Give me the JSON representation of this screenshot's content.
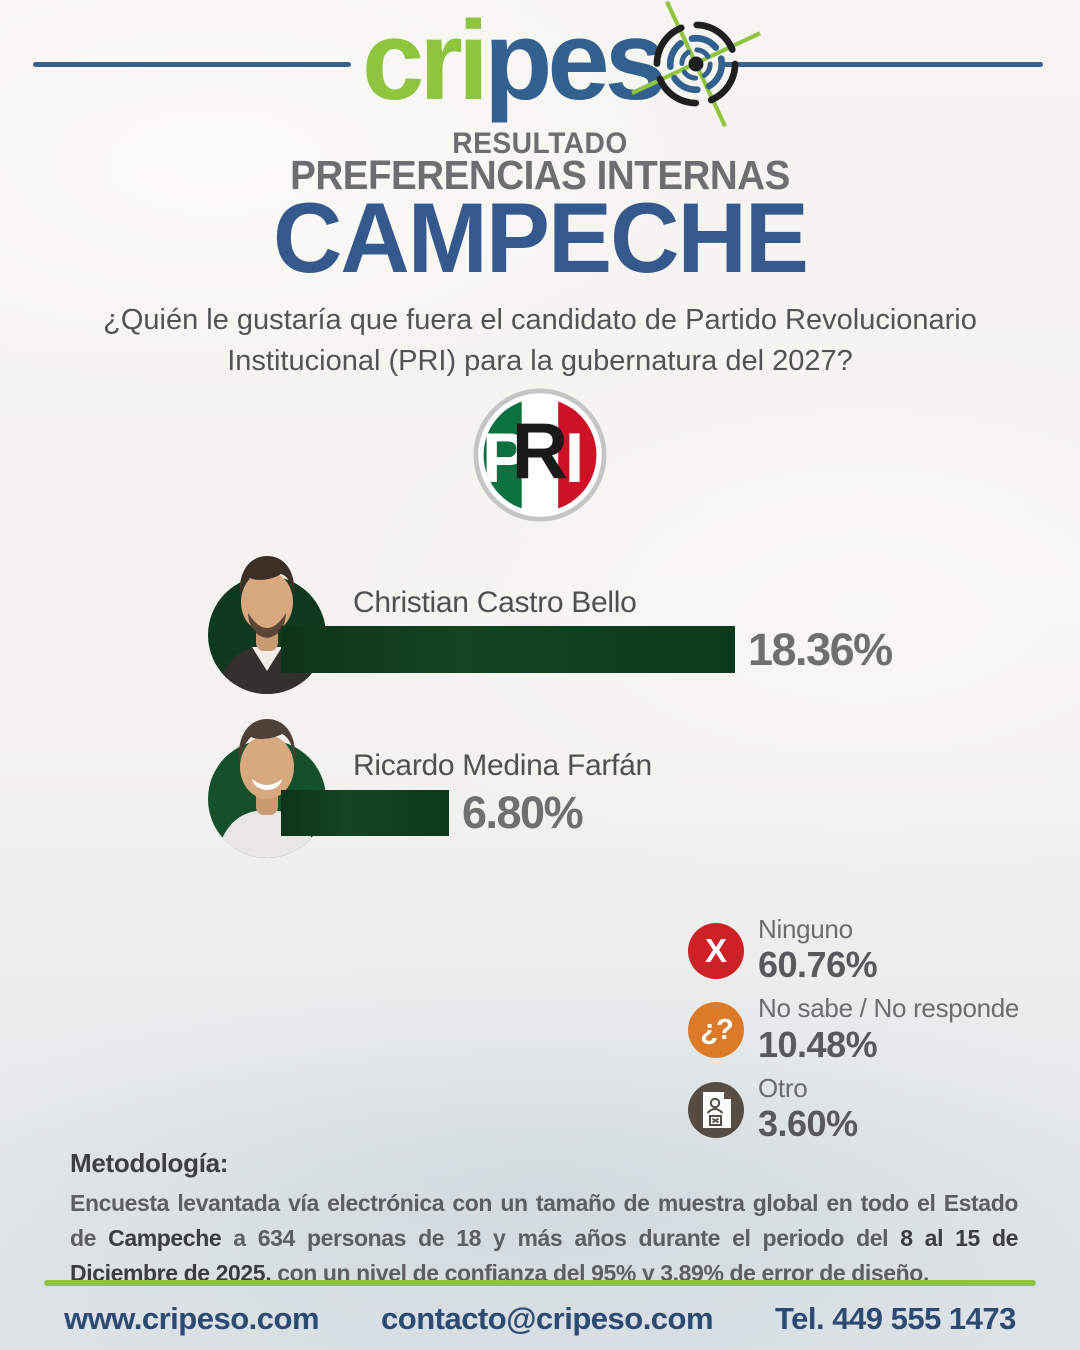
{
  "logo": {
    "green": "cri",
    "blue": "pes",
    "icon": "target-crosshair"
  },
  "header": {
    "kicker": "RESULTADO",
    "subtitle": "PREFERENCIAS INTERNAS",
    "title": "CAMPECHE"
  },
  "question": {
    "line1": "¿Quién le gustaría que fuera el candidato de Partido Revolucionario",
    "line2": "Institucional (PRI) para la gubernatura del 2027?"
  },
  "party": {
    "name": "PRI",
    "p": "P",
    "r": "R",
    "i": "I"
  },
  "chart_data": {
    "type": "bar",
    "orientation": "horizontal",
    "title": "RESULTADO PREFERENCIAS INTERNAS CAMPECHE",
    "question": "¿Quién le gustaría que fuera el candidato de Partido Revolucionario Institucional (PRI) para la gubernatura del 2027?",
    "unit": "%",
    "categories": [
      "Christian Castro Bello",
      "Ricardo Medina Farfán",
      "Ninguno",
      "No sabe / No responde",
      "Otro"
    ],
    "values": [
      18.36,
      6.8,
      60.76,
      10.48,
      3.6
    ],
    "value_labels": [
      "18.36%",
      "6.80%",
      "60.76%",
      "10.48%",
      "3.60%"
    ],
    "bar_color": "#0e3e20"
  },
  "others_icons": [
    {
      "name": "x-icon",
      "glyph": "X",
      "color": "#ce2127"
    },
    {
      "name": "question-icon",
      "glyph": "¿?",
      "color": "#dd7a2a"
    },
    {
      "name": "ballot-icon",
      "glyph": "",
      "color": "#564c44"
    }
  ],
  "methodology": {
    "heading": "Metodología:",
    "segments": [
      {
        "text": "Encuesta levantada vía electrónica con un tamaño de muestra global en todo el Estado de ",
        "strong": false
      },
      {
        "text": "Campeche",
        "strong": true
      },
      {
        "text": " a 634 personas de 18 y más años durante el periodo del ",
        "strong": false
      },
      {
        "text": "8 al 15 de Diciembre de 2025,",
        "strong": true
      },
      {
        "text": " con un nivel de confianza del 95% y 3.89% de error de diseño.",
        "strong": false
      }
    ]
  },
  "footer": {
    "website": "www.cripeso.com",
    "email": "contacto@cripeso.com",
    "phone": "Tel. 449 555 1473"
  },
  "colors": {
    "brand_green": "#8fc43f",
    "brand_blue": "#33618f",
    "title_blue": "#35598c",
    "heading_gray": "#6d6e71",
    "bar_green": "#0e3e20",
    "footer_blue": "#2d4a73",
    "footer_line_green": "#90c24a"
  }
}
